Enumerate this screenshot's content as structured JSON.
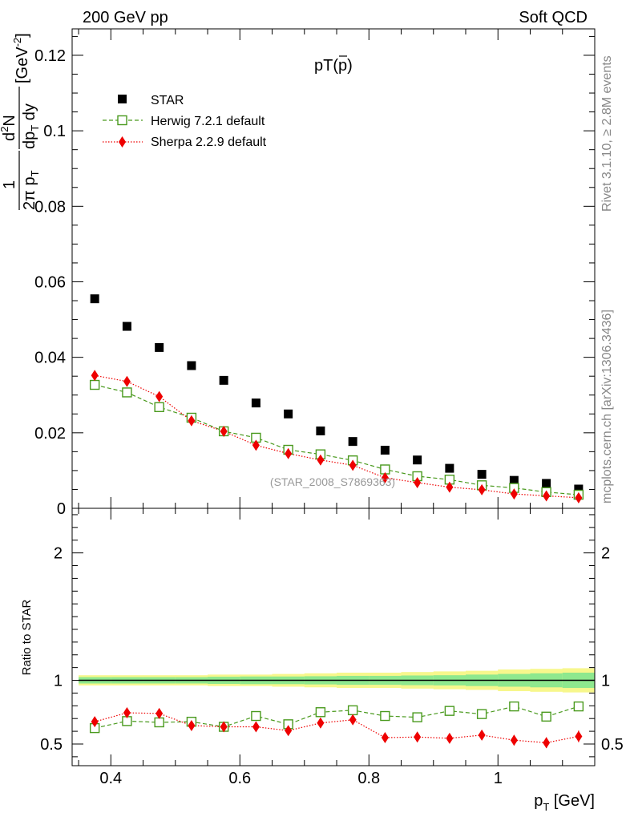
{
  "header": {
    "left": "200 GeV pp",
    "right": "Soft QCD"
  },
  "side_labels": {
    "rivet": "Rivet 3.1.10, ≥ 2.8M events",
    "mcplots": "mcplots.cern.ch [arXiv:1306.3436]"
  },
  "colors": {
    "star": "#000000",
    "herwig": "#4a9a1e",
    "sherpa": "#ee0000",
    "band_yellow": "#f7f78c",
    "band_green": "#8ee88e"
  },
  "chart_data": [
    {
      "type": "scatter",
      "panel": "main",
      "title": "pT(p̅)",
      "title_main": "pT(",
      "title_bar_char": "p",
      "title_close": ")",
      "watermark": "(STAR_2008_S7869363)",
      "ylabel_parts": {
        "frac1_num": "1",
        "frac1_den": "2π p",
        "frac1_den_sub": "T",
        "frac2_num_d": "d",
        "frac2_num_sup": "2",
        "frac2_num_N": "N",
        "frac2_den": "dp",
        "frac2_den_sub": "T",
        "frac2_den_dy": " dy",
        "unit": "[GeV",
        "unit_sup": "-2",
        "unit_close": "]"
      },
      "xlim": [
        0.34,
        1.15
      ],
      "ylim": [
        0,
        0.127
      ],
      "yticks": [
        0,
        0.02,
        0.04,
        0.06,
        0.08,
        0.1,
        0.12
      ],
      "ytick_labels": [
        "0",
        "0.02",
        "0.04",
        "0.06",
        "0.08",
        "0.1",
        "0.12"
      ],
      "x": [
        0.375,
        0.425,
        0.475,
        0.525,
        0.575,
        0.625,
        0.675,
        0.725,
        0.775,
        0.825,
        0.875,
        0.925,
        0.975,
        1.025,
        1.075,
        1.125
      ],
      "legend": {
        "placement": "top-left",
        "entries": [
          "STAR",
          "Herwig 7.2.1 default",
          "Sherpa 2.2.9 default"
        ]
      },
      "series": [
        {
          "name": "STAR",
          "marker": "filled-square",
          "values": [
            0.0555,
            0.0482,
            0.0426,
            0.0378,
            0.0339,
            0.0279,
            0.025,
            0.0205,
            0.0177,
            0.0154,
            0.0128,
            0.0106,
            0.009,
            0.0074,
            0.0066,
            0.0051
          ]
        },
        {
          "name": "Herwig 7.2.1 default",
          "marker": "open-square",
          "line": "dashed",
          "values": [
            0.0327,
            0.0307,
            0.0268,
            0.024,
            0.0204,
            0.0187,
            0.0155,
            0.0143,
            0.0127,
            0.0103,
            0.0085,
            0.0076,
            0.0061,
            0.0054,
            0.0043,
            0.0036
          ]
        },
        {
          "name": "Sherpa 2.2.9 default",
          "marker": "diamond",
          "line": "dotted",
          "values": [
            0.0352,
            0.0336,
            0.0296,
            0.0232,
            0.0204,
            0.0167,
            0.0145,
            0.0128,
            0.0114,
            0.0081,
            0.0068,
            0.0056,
            0.0049,
            0.0038,
            0.0033,
            0.0028
          ]
        }
      ]
    },
    {
      "type": "scatter",
      "panel": "ratio",
      "ylabel": "Ratio to STAR",
      "xlabel": "p",
      "xlabel_sub": "T",
      "xlabel_unit": " [GeV]",
      "xlim": [
        0.34,
        1.15
      ],
      "ylim": [
        0.33,
        2.35
      ],
      "xticks": [
        0.4,
        0.6,
        0.8,
        1.0
      ],
      "xtick_labels": [
        "0.4",
        "0.6",
        "0.8",
        "1"
      ],
      "yticks": [
        0.5,
        1,
        2
      ],
      "ytick_labels": [
        "0.5",
        "1",
        "2"
      ],
      "x": [
        0.375,
        0.425,
        0.475,
        0.525,
        0.575,
        0.625,
        0.675,
        0.725,
        0.775,
        0.825,
        0.875,
        0.925,
        0.975,
        1.025,
        1.075,
        1.125
      ],
      "star_band_yellow_halfwidth": [
        0.04,
        0.04,
        0.04,
        0.04,
        0.045,
        0.045,
        0.05,
        0.055,
        0.06,
        0.06,
        0.065,
        0.07,
        0.075,
        0.085,
        0.09,
        0.095
      ],
      "star_band_green_halfwidth": [
        0.025,
        0.025,
        0.025,
        0.025,
        0.028,
        0.03,
        0.03,
        0.032,
        0.035,
        0.035,
        0.038,
        0.04,
        0.045,
        0.05,
        0.055,
        0.06
      ],
      "series": [
        {
          "name": "Herwig 7.2.1 default",
          "values": [
            0.625,
            0.68,
            0.67,
            0.675,
            0.635,
            0.72,
            0.655,
            0.75,
            0.765,
            0.72,
            0.71,
            0.76,
            0.735,
            0.795,
            0.715,
            0.795
          ],
          "errors": [
            0.015,
            0.015,
            0.015,
            0.015,
            0.015,
            0.018,
            0.018,
            0.018,
            0.02,
            0.02,
            0.022,
            0.025,
            0.028,
            0.03,
            0.03,
            0.035
          ]
        },
        {
          "name": "Sherpa 2.2.9 default",
          "values": [
            0.675,
            0.745,
            0.74,
            0.645,
            0.635,
            0.635,
            0.605,
            0.665,
            0.69,
            0.55,
            0.555,
            0.545,
            0.57,
            0.53,
            0.51,
            0.56
          ],
          "errors": [
            0.02,
            0.02,
            0.02,
            0.02,
            0.02,
            0.022,
            0.025,
            0.025,
            0.028,
            0.03,
            0.032,
            0.035,
            0.038,
            0.04,
            0.042,
            0.045
          ]
        }
      ]
    }
  ]
}
